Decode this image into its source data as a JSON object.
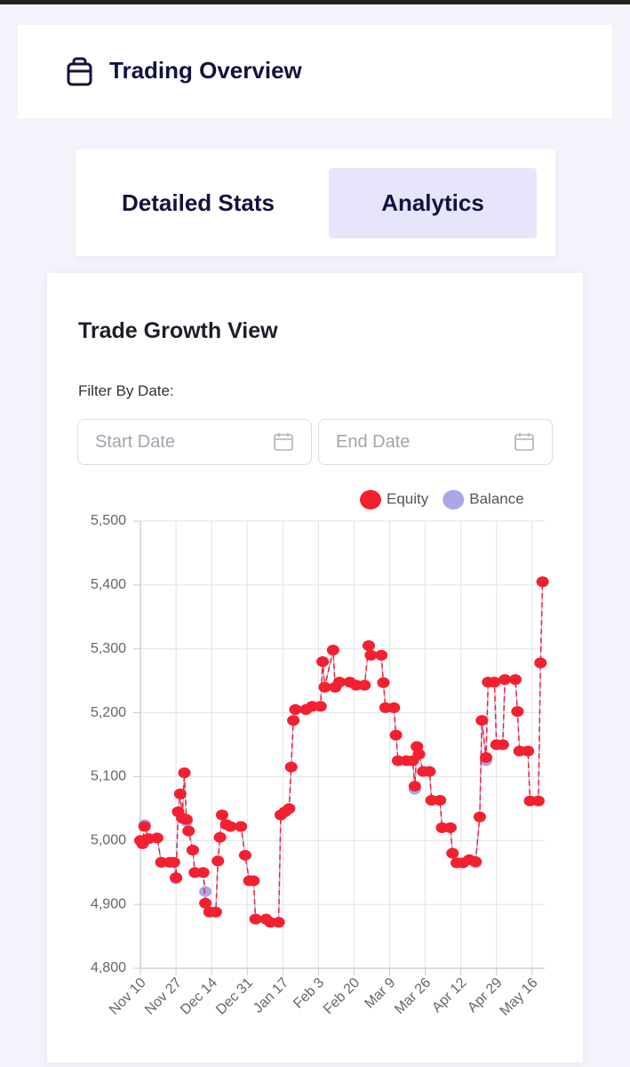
{
  "header": {
    "title": "Trading Overview"
  },
  "tabs": [
    "Detailed Stats",
    "Analytics"
  ],
  "card": {
    "title": "Trade Growth View",
    "filter_label": "Filter By Date:",
    "start_placeholder": "Start Date",
    "end_placeholder": "End Date"
  },
  "chart_data": {
    "type": "line",
    "x": [
      0,
      1,
      2,
      4,
      8,
      10,
      14,
      16,
      17,
      18,
      19,
      20,
      21,
      22,
      23,
      25,
      26,
      30,
      31,
      33,
      36,
      37,
      38,
      39,
      41,
      43,
      48,
      50,
      52,
      54,
      55,
      60,
      62,
      66,
      67,
      69,
      71,
      72,
      73,
      74,
      79,
      82,
      86,
      87,
      88,
      92,
      93,
      95,
      100,
      103,
      107,
      109,
      110,
      115,
      116,
      117,
      121,
      122,
      123,
      127,
      130,
      131,
      132,
      133,
      135,
      138,
      139,
      143,
      144,
      148,
      149,
      151,
      154,
      157,
      160,
      162,
      163,
      165,
      166,
      169,
      170,
      173,
      174,
      179,
      180,
      181,
      185,
      186,
      190,
      191,
      192
    ],
    "series": [
      {
        "name": "Balance",
        "color": "#a9a7e6",
        "values": [
          5000,
          4995,
          5025,
          5003,
          5004,
          4966,
          4966,
          4966,
          4940,
          5045,
          5073,
          5035,
          5106,
          5030,
          5015,
          4985,
          4950,
          4950,
          4920,
          4888,
          4888,
          4968,
          5005,
          5040,
          5025,
          5022,
          5022,
          4977,
          4937,
          4937,
          4877,
          4877,
          4872,
          4872,
          5040,
          5045,
          5050,
          5115,
          5188,
          5205,
          5205,
          5210,
          5210,
          5280,
          5240,
          5298,
          5240,
          5248,
          5248,
          5243,
          5243,
          5305,
          5290,
          5290,
          5247,
          5208,
          5208,
          5165,
          5125,
          5125,
          5125,
          5080,
          5147,
          5135,
          5108,
          5108,
          5063,
          5063,
          5020,
          5020,
          4980,
          4965,
          4965,
          4970,
          4965,
          5037,
          5188,
          5125,
          5248,
          5248,
          5150,
          5150,
          5252,
          5252,
          5202,
          5140,
          5140,
          5062,
          5062,
          5278,
          5405
        ]
      },
      {
        "name": "Equity",
        "color": "#f4202f",
        "values": [
          5000,
          4995,
          5022,
          5003,
          5004,
          4966,
          4966,
          4966,
          4942,
          5045,
          5073,
          5035,
          5106,
          5033,
          5015,
          4985,
          4950,
          4950,
          4902,
          4888,
          4888,
          4968,
          5005,
          5040,
          5025,
          5022,
          5022,
          4977,
          4937,
          4937,
          4877,
          4877,
          4872,
          4872,
          5040,
          5045,
          5050,
          5115,
          5188,
          5205,
          5205,
          5210,
          5210,
          5280,
          5240,
          5298,
          5240,
          5248,
          5248,
          5243,
          5243,
          5305,
          5290,
          5290,
          5247,
          5208,
          5208,
          5165,
          5125,
          5125,
          5125,
          5085,
          5147,
          5135,
          5108,
          5108,
          5063,
          5063,
          5020,
          5020,
          4980,
          4965,
          4965,
          4970,
          4967,
          5037,
          5188,
          5130,
          5248,
          5248,
          5150,
          5150,
          5252,
          5252,
          5202,
          5140,
          5140,
          5062,
          5062,
          5278,
          5405
        ]
      }
    ],
    "xlim": [
      0,
      193
    ],
    "xticks": [
      {
        "value": 0,
        "label": "Nov 10"
      },
      {
        "value": 17,
        "label": "Nov 27"
      },
      {
        "value": 34,
        "label": "Dec 14"
      },
      {
        "value": 51,
        "label": "Dec 31"
      },
      {
        "value": 68,
        "label": "Jan 17"
      },
      {
        "value": 85,
        "label": "Feb 3"
      },
      {
        "value": 102,
        "label": "Feb 20"
      },
      {
        "value": 119,
        "label": "Mar 9"
      },
      {
        "value": 136,
        "label": "Mar 26"
      },
      {
        "value": 153,
        "label": "Apr 12"
      },
      {
        "value": 170,
        "label": "Apr 29"
      },
      {
        "value": 187,
        "label": "May 16"
      }
    ],
    "ylim": [
      4800,
      5500
    ],
    "yticks": [
      {
        "value": 4800,
        "label": "4,800"
      },
      {
        "value": 4900,
        "label": "4,900"
      },
      {
        "value": 5000,
        "label": "5,000"
      },
      {
        "value": 5100,
        "label": "5,100"
      },
      {
        "value": 5200,
        "label": "5,200"
      },
      {
        "value": 5300,
        "label": "5,300"
      },
      {
        "value": 5400,
        "label": "5,400"
      },
      {
        "value": 5500,
        "label": "5,500"
      }
    ],
    "grid": true,
    "legend": "top-right"
  }
}
